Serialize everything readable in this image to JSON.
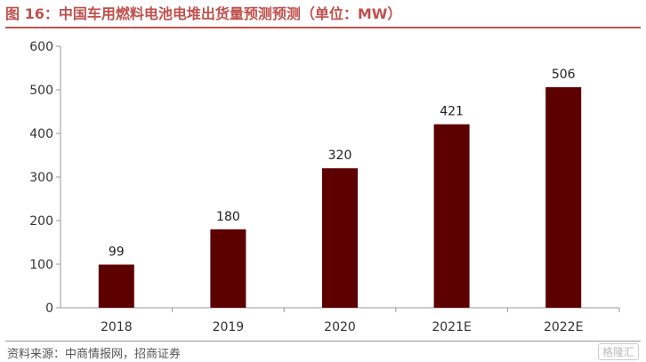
{
  "title": "图 16：中国车用燃料电池电堆出货量预测预测（单位：MW）",
  "source": "资料来源：中商情报网，招商证券",
  "watermark": "格隆汇",
  "colors": {
    "accent": "#c0504d",
    "bar": "#5c0000"
  },
  "chart_data": {
    "type": "bar",
    "categories": [
      "2018",
      "2019",
      "2020",
      "2021E",
      "2022E"
    ],
    "values": [
      99,
      180,
      320,
      421,
      506
    ],
    "ylim": [
      0,
      600
    ],
    "yticks": [
      0,
      100,
      200,
      300,
      400,
      500,
      600
    ],
    "grid": false,
    "xlabel": "",
    "ylabel": ""
  }
}
